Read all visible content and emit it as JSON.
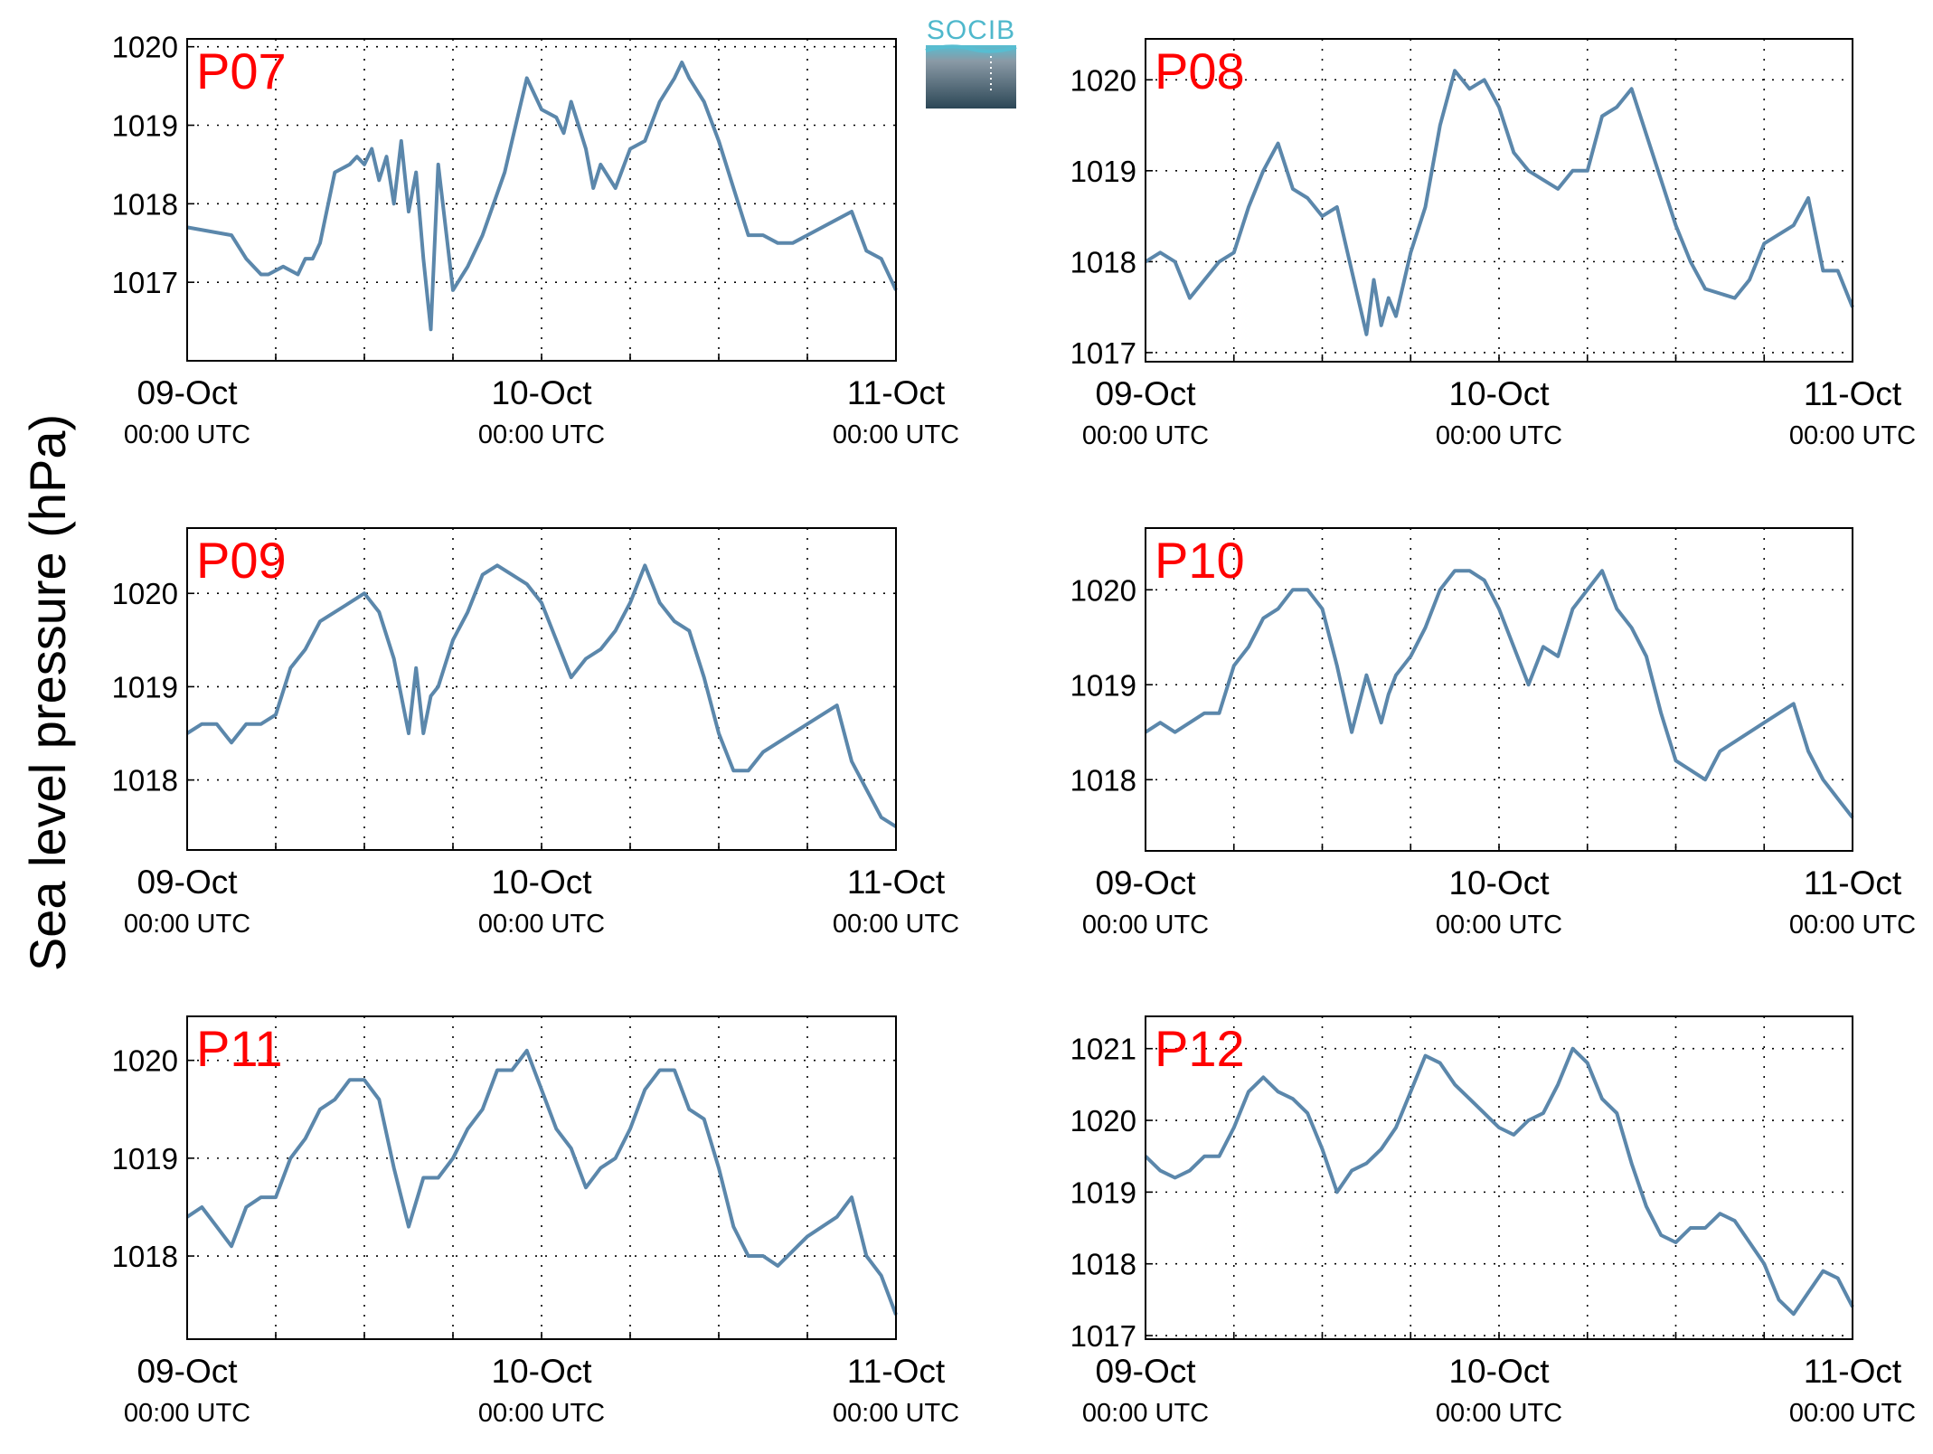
{
  "ylabel": "Sea level pressure (hPa)",
  "logo": {
    "text": "SOCIB"
  },
  "colors": {
    "line": "#5b87ab",
    "label": "#ff0000",
    "logo_top": "#57bdd1",
    "logo_bottom": "#2c4756"
  },
  "chart_data": [
    {
      "type": "line",
      "label": "P07",
      "x_ticks": [
        {
          "date": "09-Oct",
          "time": "00:00 UTC"
        },
        {
          "date": "10-Oct",
          "time": "00:00 UTC"
        },
        {
          "date": "11-Oct",
          "time": "00:00 UTC"
        }
      ],
      "xlim": [
        "2013-10-09 00:00",
        "2013-10-11 00:00"
      ],
      "ylim": [
        1016.0,
        1020.1
      ],
      "yticks": [
        1017,
        1018,
        1019,
        1020
      ],
      "grid": true,
      "series": [
        {
          "x": [
            "2013-10-09 00:00",
            "2013-10-09 03:00",
            "2013-10-09 04:00",
            "2013-10-09 05:00",
            "2013-10-09 05:30",
            "2013-10-09 06:30",
            "2013-10-09 07:30",
            "2013-10-09 08:00",
            "2013-10-09 08:30",
            "2013-10-09 09:00",
            "2013-10-09 10:00",
            "2013-10-09 11:00",
            "2013-10-09 11:30",
            "2013-10-09 12:00",
            "2013-10-09 12:30",
            "2013-10-09 13:00",
            "2013-10-09 13:30",
            "2013-10-09 14:00",
            "2013-10-09 14:30",
            "2013-10-09 15:00",
            "2013-10-09 15:30",
            "2013-10-09 16:00",
            "2013-10-09 16:30",
            "2013-10-09 17:00",
            "2013-10-09 18:00",
            "2013-10-09 19:00",
            "2013-10-09 20:00",
            "2013-10-09 21:30",
            "2013-10-09 22:00",
            "2013-10-09 22:30",
            "2013-10-09 23:00",
            "2013-10-10 00:00",
            "2013-10-10 01:00",
            "2013-10-10 01:30",
            "2013-10-10 02:00",
            "2013-10-10 03:00",
            "2013-10-10 03:30",
            "2013-10-10 04:00",
            "2013-10-10 05:00",
            "2013-10-10 06:00",
            "2013-10-10 07:00",
            "2013-10-10 08:00",
            "2013-10-10 09:00",
            "2013-10-10 09:30",
            "2013-10-10 10:00",
            "2013-10-10 11:00",
            "2013-10-10 12:00",
            "2013-10-10 13:00",
            "2013-10-10 14:00",
            "2013-10-10 15:00",
            "2013-10-10 16:00",
            "2013-10-10 17:00",
            "2013-10-10 18:00",
            "2013-10-10 20:00",
            "2013-10-10 21:00",
            "2013-10-10 22:00",
            "2013-10-10 23:00",
            "2013-10-11 00:00"
          ],
          "y": [
            1017.7,
            1017.6,
            1017.3,
            1017.1,
            1017.1,
            1017.2,
            1017.1,
            1017.3,
            1017.3,
            1017.5,
            1018.4,
            1018.5,
            1018.6,
            1018.5,
            1018.7,
            1018.3,
            1018.6,
            1018.0,
            1018.8,
            1017.9,
            1018.4,
            1017.3,
            1016.4,
            1018.5,
            1016.9,
            1017.2,
            1017.6,
            1018.4,
            1018.8,
            1019.2,
            1019.6,
            1019.2,
            1019.1,
            1018.9,
            1019.3,
            1018.7,
            1018.2,
            1018.5,
            1018.2,
            1018.7,
            1018.8,
            1019.3,
            1019.6,
            1019.8,
            1019.6,
            1019.3,
            1018.8,
            1018.2,
            1017.6,
            1017.6,
            1017.5,
            1017.5,
            1017.6,
            1017.8,
            1017.9,
            1017.4,
            1017.3,
            1016.9
          ]
        }
      ]
    },
    {
      "type": "line",
      "label": "P08",
      "x_ticks": [
        {
          "date": "09-Oct",
          "time": "00:00 UTC"
        },
        {
          "date": "10-Oct",
          "time": "00:00 UTC"
        },
        {
          "date": "11-Oct",
          "time": "00:00 UTC"
        }
      ],
      "xlim": [
        "2013-10-09 00:00",
        "2013-10-11 00:00"
      ],
      "ylim": [
        1016.9,
        1020.45
      ],
      "yticks": [
        1017,
        1018,
        1019,
        1020
      ],
      "grid": true,
      "series": [
        {
          "x": [
            "2013-10-09 00:00",
            "2013-10-09 01:00",
            "2013-10-09 02:00",
            "2013-10-09 03:00",
            "2013-10-09 04:00",
            "2013-10-09 05:00",
            "2013-10-09 06:00",
            "2013-10-09 07:00",
            "2013-10-09 08:00",
            "2013-10-09 09:00",
            "2013-10-09 10:00",
            "2013-10-09 11:00",
            "2013-10-09 12:00",
            "2013-10-09 13:00",
            "2013-10-09 14:00",
            "2013-10-09 15:00",
            "2013-10-09 15:30",
            "2013-10-09 16:00",
            "2013-10-09 16:30",
            "2013-10-09 17:00",
            "2013-10-09 18:00",
            "2013-10-09 19:00",
            "2013-10-09 20:00",
            "2013-10-09 21:00",
            "2013-10-09 22:00",
            "2013-10-09 23:00",
            "2013-10-10 00:00",
            "2013-10-10 01:00",
            "2013-10-10 02:00",
            "2013-10-10 03:00",
            "2013-10-10 04:00",
            "2013-10-10 05:00",
            "2013-10-10 06:00",
            "2013-10-10 07:00",
            "2013-10-10 08:00",
            "2013-10-10 09:00",
            "2013-10-10 10:00",
            "2013-10-10 11:00",
            "2013-10-10 12:00",
            "2013-10-10 13:00",
            "2013-10-10 14:00",
            "2013-10-10 16:00",
            "2013-10-10 17:00",
            "2013-10-10 18:00",
            "2013-10-10 20:00",
            "2013-10-10 21:00",
            "2013-10-10 22:00",
            "2013-10-10 23:00",
            "2013-10-11 00:00"
          ],
          "y": [
            1018.0,
            1018.1,
            1018.0,
            1017.6,
            1017.8,
            1018.0,
            1018.1,
            1018.6,
            1019.0,
            1019.3,
            1018.8,
            1018.7,
            1018.5,
            1018.6,
            1017.9,
            1017.2,
            1017.8,
            1017.3,
            1017.6,
            1017.4,
            1018.1,
            1018.6,
            1019.5,
            1020.1,
            1019.9,
            1020.0,
            1019.7,
            1019.2,
            1019.0,
            1018.9,
            1018.8,
            1019.0,
            1019.0,
            1019.6,
            1019.7,
            1019.9,
            1019.4,
            1018.9,
            1018.4,
            1018.0,
            1017.7,
            1017.6,
            1017.8,
            1018.2,
            1018.4,
            1018.7,
            1017.9,
            1017.9,
            1017.5
          ]
        }
      ]
    },
    {
      "type": "line",
      "label": "P09",
      "x_ticks": [
        {
          "date": "09-Oct",
          "time": "00:00 UTC"
        },
        {
          "date": "10-Oct",
          "time": "00:00 UTC"
        },
        {
          "date": "11-Oct",
          "time": "00:00 UTC"
        }
      ],
      "xlim": [
        "2013-10-09 00:00",
        "2013-10-11 00:00"
      ],
      "ylim": [
        1017.25,
        1020.7
      ],
      "yticks": [
        1018,
        1019,
        1020
      ],
      "grid": true,
      "series": [
        {
          "x": [
            "2013-10-09 00:00",
            "2013-10-09 01:00",
            "2013-10-09 02:00",
            "2013-10-09 03:00",
            "2013-10-09 04:00",
            "2013-10-09 05:00",
            "2013-10-09 06:00",
            "2013-10-09 07:00",
            "2013-10-09 08:00",
            "2013-10-09 09:00",
            "2013-10-09 10:00",
            "2013-10-09 11:00",
            "2013-10-09 12:00",
            "2013-10-09 13:00",
            "2013-10-09 14:00",
            "2013-10-09 15:00",
            "2013-10-09 15:30",
            "2013-10-09 16:00",
            "2013-10-09 16:30",
            "2013-10-09 17:00",
            "2013-10-09 18:00",
            "2013-10-09 19:00",
            "2013-10-09 20:00",
            "2013-10-09 21:00",
            "2013-10-09 22:00",
            "2013-10-09 23:00",
            "2013-10-10 00:00",
            "2013-10-10 01:00",
            "2013-10-10 02:00",
            "2013-10-10 03:00",
            "2013-10-10 04:00",
            "2013-10-10 05:00",
            "2013-10-10 06:00",
            "2013-10-10 07:00",
            "2013-10-10 08:00",
            "2013-10-10 09:00",
            "2013-10-10 10:00",
            "2013-10-10 11:00",
            "2013-10-10 12:00",
            "2013-10-10 13:00",
            "2013-10-10 14:00",
            "2013-10-10 15:00",
            "2013-10-10 16:00",
            "2013-10-10 18:00",
            "2013-10-10 20:00",
            "2013-10-10 21:00",
            "2013-10-10 22:00",
            "2013-10-10 23:00",
            "2013-10-11 00:00"
          ],
          "y": [
            1018.5,
            1018.6,
            1018.6,
            1018.4,
            1018.6,
            1018.6,
            1018.7,
            1019.2,
            1019.4,
            1019.7,
            1019.8,
            1019.9,
            1020.0,
            1019.8,
            1019.3,
            1018.5,
            1019.2,
            1018.5,
            1018.9,
            1019.0,
            1019.5,
            1019.8,
            1020.2,
            1020.3,
            1020.2,
            1020.1,
            1019.9,
            1019.5,
            1019.1,
            1019.3,
            1019.4,
            1019.6,
            1019.9,
            1020.3,
            1019.9,
            1019.7,
            1019.6,
            1019.1,
            1018.5,
            1018.1,
            1018.1,
            1018.3,
            1018.4,
            1018.6,
            1018.8,
            1018.2,
            1017.9,
            1017.6,
            1017.5
          ]
        }
      ]
    },
    {
      "type": "line",
      "label": "P10",
      "x_ticks": [
        {
          "date": "09-Oct",
          "time": "00:00 UTC"
        },
        {
          "date": "10-Oct",
          "time": "00:00 UTC"
        },
        {
          "date": "11-Oct",
          "time": "00:00 UTC"
        }
      ],
      "xlim": [
        "2013-10-09 00:00",
        "2013-10-11 00:00"
      ],
      "ylim": [
        1017.25,
        1020.65
      ],
      "yticks": [
        1018,
        1019,
        1020
      ],
      "grid": true,
      "series": [
        {
          "x": [
            "2013-10-09 00:00",
            "2013-10-09 01:00",
            "2013-10-09 02:00",
            "2013-10-09 03:00",
            "2013-10-09 04:00",
            "2013-10-09 05:00",
            "2013-10-09 06:00",
            "2013-10-09 07:00",
            "2013-10-09 08:00",
            "2013-10-09 09:00",
            "2013-10-09 10:00",
            "2013-10-09 11:00",
            "2013-10-09 12:00",
            "2013-10-09 13:00",
            "2013-10-09 14:00",
            "2013-10-09 15:00",
            "2013-10-09 16:00",
            "2013-10-09 16:30",
            "2013-10-09 17:00",
            "2013-10-09 18:00",
            "2013-10-09 19:00",
            "2013-10-09 20:00",
            "2013-10-09 21:00",
            "2013-10-09 22:00",
            "2013-10-09 23:00",
            "2013-10-10 00:00",
            "2013-10-10 01:00",
            "2013-10-10 02:00",
            "2013-10-10 03:00",
            "2013-10-10 04:00",
            "2013-10-10 05:00",
            "2013-10-10 06:00",
            "2013-10-10 07:00",
            "2013-10-10 08:00",
            "2013-10-10 09:00",
            "2013-10-10 10:00",
            "2013-10-10 11:00",
            "2013-10-10 12:00",
            "2013-10-10 13:00",
            "2013-10-10 14:00",
            "2013-10-10 15:00",
            "2013-10-10 16:00",
            "2013-10-10 18:00",
            "2013-10-10 20:00",
            "2013-10-10 21:00",
            "2013-10-10 22:00",
            "2013-10-10 23:00",
            "2013-10-11 00:00"
          ],
          "y": [
            1018.5,
            1018.6,
            1018.5,
            1018.6,
            1018.7,
            1018.7,
            1019.2,
            1019.4,
            1019.7,
            1019.8,
            1020.0,
            1020.0,
            1019.8,
            1019.2,
            1018.5,
            1019.1,
            1018.6,
            1018.9,
            1019.1,
            1019.3,
            1019.6,
            1020.0,
            1020.2,
            1020.2,
            1020.1,
            1019.8,
            1019.4,
            1019.0,
            1019.4,
            1019.3,
            1019.8,
            1020.0,
            1020.2,
            1019.8,
            1019.6,
            1019.3,
            1018.7,
            1018.2,
            1018.1,
            1018.0,
            1018.3,
            1018.4,
            1018.6,
            1018.8,
            1018.3,
            1018.0,
            1017.8,
            1017.6
          ]
        }
      ]
    },
    {
      "type": "line",
      "label": "P11",
      "x_ticks": [
        {
          "date": "09-Oct",
          "time": "00:00 UTC"
        },
        {
          "date": "10-Oct",
          "time": "00:00 UTC"
        },
        {
          "date": "11-Oct",
          "time": "00:00 UTC"
        }
      ],
      "xlim": [
        "2013-10-09 00:00",
        "2013-10-11 00:00"
      ],
      "ylim": [
        1017.15,
        1020.45
      ],
      "yticks": [
        1018,
        1019,
        1020
      ],
      "grid": true,
      "series": [
        {
          "x": [
            "2013-10-09 00:00",
            "2013-10-09 01:00",
            "2013-10-09 02:00",
            "2013-10-09 03:00",
            "2013-10-09 04:00",
            "2013-10-09 05:00",
            "2013-10-09 06:00",
            "2013-10-09 07:00",
            "2013-10-09 08:00",
            "2013-10-09 09:00",
            "2013-10-09 10:00",
            "2013-10-09 11:00",
            "2013-10-09 12:00",
            "2013-10-09 13:00",
            "2013-10-09 14:00",
            "2013-10-09 15:00",
            "2013-10-09 16:00",
            "2013-10-09 17:00",
            "2013-10-09 18:00",
            "2013-10-09 19:00",
            "2013-10-09 20:00",
            "2013-10-09 21:00",
            "2013-10-09 22:00",
            "2013-10-09 23:00",
            "2013-10-10 00:00",
            "2013-10-10 01:00",
            "2013-10-10 02:00",
            "2013-10-10 03:00",
            "2013-10-10 04:00",
            "2013-10-10 05:00",
            "2013-10-10 06:00",
            "2013-10-10 07:00",
            "2013-10-10 08:00",
            "2013-10-10 09:00",
            "2013-10-10 10:00",
            "2013-10-10 11:00",
            "2013-10-10 12:00",
            "2013-10-10 13:00",
            "2013-10-10 14:00",
            "2013-10-10 15:00",
            "2013-10-10 16:00",
            "2013-10-10 18:00",
            "2013-10-10 20:00",
            "2013-10-10 21:00",
            "2013-10-10 22:00",
            "2013-10-10 23:00",
            "2013-10-11 00:00"
          ],
          "y": [
            1018.4,
            1018.5,
            1018.3,
            1018.1,
            1018.5,
            1018.6,
            1018.6,
            1019.0,
            1019.2,
            1019.5,
            1019.6,
            1019.8,
            1019.8,
            1019.6,
            1018.9,
            1018.3,
            1018.8,
            1018.8,
            1019.0,
            1019.3,
            1019.5,
            1019.9,
            1019.9,
            1020.1,
            1019.7,
            1019.3,
            1019.1,
            1018.7,
            1018.9,
            1019.0,
            1019.3,
            1019.7,
            1019.9,
            1019.9,
            1019.5,
            1019.4,
            1018.9,
            1018.3,
            1018.0,
            1018.0,
            1017.9,
            1018.2,
            1018.4,
            1018.6,
            1018.0,
            1017.8,
            1017.4
          ]
        }
      ]
    },
    {
      "type": "line",
      "label": "P12",
      "x_ticks": [
        {
          "date": "09-Oct",
          "time": "00:00 UTC"
        },
        {
          "date": "10-Oct",
          "time": "00:00 UTC"
        },
        {
          "date": "11-Oct",
          "time": "00:00 UTC"
        }
      ],
      "xlim": [
        "2013-10-09 00:00",
        "2013-10-11 00:00"
      ],
      "ylim": [
        1016.95,
        1021.45
      ],
      "yticks": [
        1017,
        1018,
        1019,
        1020,
        1021
      ],
      "grid": true,
      "series": [
        {
          "x": [
            "2013-10-09 00:00",
            "2013-10-09 01:00",
            "2013-10-09 02:00",
            "2013-10-09 03:00",
            "2013-10-09 04:00",
            "2013-10-09 05:00",
            "2013-10-09 06:00",
            "2013-10-09 07:00",
            "2013-10-09 08:00",
            "2013-10-09 09:00",
            "2013-10-09 10:00",
            "2013-10-09 11:00",
            "2013-10-09 12:00",
            "2013-10-09 13:00",
            "2013-10-09 14:00",
            "2013-10-09 15:00",
            "2013-10-09 16:00",
            "2013-10-09 17:00",
            "2013-10-09 18:00",
            "2013-10-09 19:00",
            "2013-10-09 20:00",
            "2013-10-09 21:00",
            "2013-10-09 22:00",
            "2013-10-09 23:00",
            "2013-10-10 00:00",
            "2013-10-10 01:00",
            "2013-10-10 02:00",
            "2013-10-10 03:00",
            "2013-10-10 04:00",
            "2013-10-10 05:00",
            "2013-10-10 06:00",
            "2013-10-10 07:00",
            "2013-10-10 08:00",
            "2013-10-10 09:00",
            "2013-10-10 10:00",
            "2013-10-10 11:00",
            "2013-10-10 12:00",
            "2013-10-10 13:00",
            "2013-10-10 14:00",
            "2013-10-10 15:00",
            "2013-10-10 16:00",
            "2013-10-10 17:00",
            "2013-10-10 18:00",
            "2013-10-10 19:00",
            "2013-10-10 20:00",
            "2013-10-10 21:00",
            "2013-10-10 22:00",
            "2013-10-10 23:00",
            "2013-10-11 00:00"
          ],
          "y": [
            1019.5,
            1019.3,
            1019.2,
            1019.3,
            1019.5,
            1019.5,
            1019.9,
            1020.4,
            1020.6,
            1020.4,
            1020.3,
            1020.1,
            1019.6,
            1019.0,
            1019.3,
            1019.4,
            1019.6,
            1019.9,
            1020.4,
            1020.9,
            1020.8,
            1020.5,
            1020.3,
            1020.1,
            1019.9,
            1019.8,
            1020.0,
            1020.1,
            1020.5,
            1021.0,
            1020.8,
            1020.3,
            1020.1,
            1019.4,
            1018.8,
            1018.4,
            1018.3,
            1018.5,
            1018.5,
            1018.7,
            1018.6,
            1018.3,
            1018.0,
            1017.5,
            1017.3,
            1017.6,
            1017.9,
            1017.8,
            1017.4
          ]
        }
      ]
    }
  ]
}
